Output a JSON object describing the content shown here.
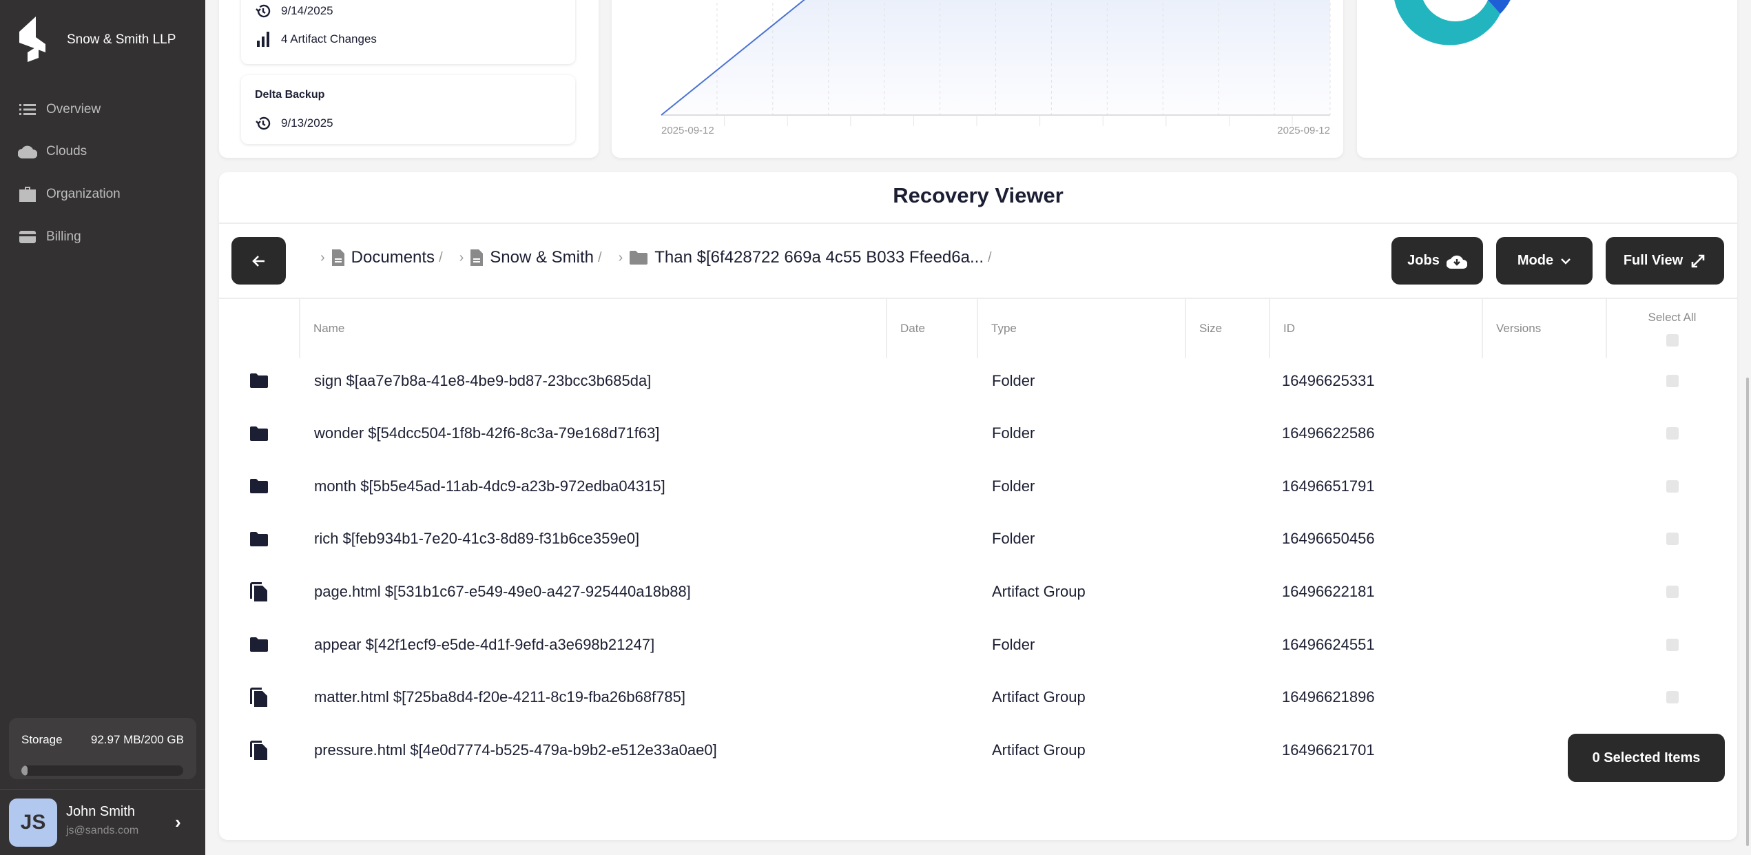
{
  "sidebar": {
    "brand": "Snow & Smith LLP",
    "items": [
      {
        "label": "Overview",
        "icon": "list-icon"
      },
      {
        "label": "Clouds",
        "icon": "cloud-icon"
      },
      {
        "label": "Organization",
        "icon": "briefcase-icon"
      },
      {
        "label": "Billing",
        "icon": "credit-card-icon"
      }
    ],
    "storage": {
      "label": "Storage",
      "value": "92.97 MB/200 GB",
      "fill_percent": 0.05
    },
    "user": {
      "initials": "JS",
      "name": "John Smith",
      "email": "js@sands.com"
    }
  },
  "backups": {
    "items": [
      {
        "date": "9/14/2025",
        "changes": "4 Artifact Changes"
      },
      {
        "title": "Delta Backup",
        "date": "9/13/2025"
      }
    ]
  },
  "chart_data": {
    "type": "area",
    "x_tick_labels": [
      "2025-09-12",
      "2025-09-12"
    ],
    "grid": true,
    "colors": {
      "line": "#4a72d4",
      "fill": "#e8eefa"
    }
  },
  "donut": {
    "colors": [
      "#22b5c0",
      "#1f5fd6"
    ]
  },
  "viewer": {
    "title": "Recovery Viewer",
    "breadcrumbs": [
      {
        "label": "Documents",
        "icon": "file-icon"
      },
      {
        "label": "Snow & Smith",
        "icon": "file-icon"
      },
      {
        "label": "Than $[6f428722 669a 4c55 B033 Ffeed6a...",
        "icon": "folder-icon"
      }
    ],
    "separator": "/",
    "buttons": {
      "jobs": "Jobs",
      "mode": "Mode",
      "full_view": "Full View"
    },
    "columns": {
      "name": "Name",
      "date": "Date",
      "type": "Type",
      "size": "Size",
      "id": "ID",
      "versions": "Versions",
      "select_all": "Select All"
    },
    "rows": [
      {
        "icon": "folder",
        "name": "sign $[aa7e7b8a-41e8-4be9-bd87-23bcc3b685da]",
        "type": "Folder",
        "id": "16496625331"
      },
      {
        "icon": "folder",
        "name": "wonder $[54dcc504-1f8b-42f6-8c3a-79e168d71f63]",
        "type": "Folder",
        "id": "16496622586"
      },
      {
        "icon": "folder",
        "name": "month $[5b5e45ad-11ab-4dc9-a23b-972edba04315]",
        "type": "Folder",
        "id": "16496651791"
      },
      {
        "icon": "folder",
        "name": "rich $[feb934b1-7e20-41c3-8d89-f31b6ce359e0]",
        "type": "Folder",
        "id": "16496650456"
      },
      {
        "icon": "files",
        "name": "page.html $[531b1c67-e549-49e0-a427-925440a18b88]",
        "type": "Artifact Group",
        "id": "16496622181"
      },
      {
        "icon": "folder",
        "name": "appear $[42f1ecf9-e5de-4d1f-9efd-a3e698b21247]",
        "type": "Folder",
        "id": "16496624551"
      },
      {
        "icon": "files",
        "name": "matter.html $[725ba8d4-f20e-4211-8c19-fba26b68f785]",
        "type": "Artifact Group",
        "id": "16496621896"
      },
      {
        "icon": "files",
        "name": "pressure.html $[4e0d7774-b525-479a-b9b2-e512e33a0ae0]",
        "type": "Artifact Group",
        "id": "16496621701"
      }
    ],
    "selected_label": "0 Selected Items"
  }
}
